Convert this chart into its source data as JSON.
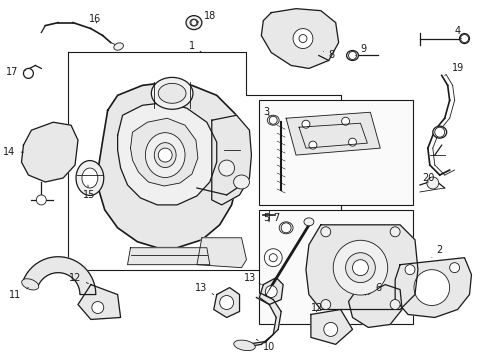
{
  "bg_color": "#ffffff",
  "line_color": "#1a1a1a",
  "lw_main": 0.9,
  "lw_thin": 0.6,
  "lw_thick": 1.2,
  "figsize": [
    4.9,
    3.6
  ],
  "dpi": 100
}
